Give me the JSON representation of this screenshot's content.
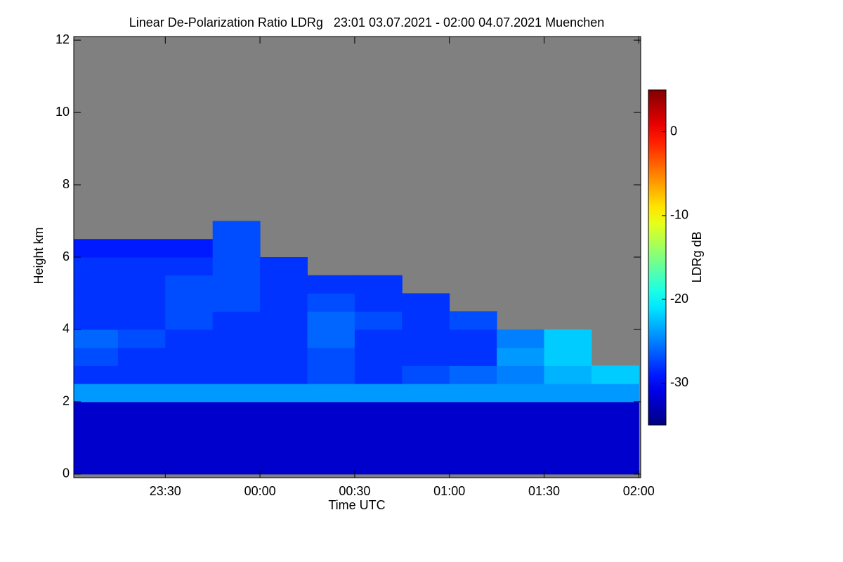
{
  "chart_data": {
    "type": "heatmap",
    "title": "Linear De-Polarization Ratio LDRg   23:01 03.07.2021 - 02:00 04.07.2021 Muenchen",
    "xlabel": "Time UTC",
    "ylabel": "Height km",
    "colorbar_label": "LDRg dB",
    "x_edges": [
      23.0167,
      23.25,
      23.5,
      23.75,
      24,
      24.25,
      24.5,
      24.75,
      25,
      25.25,
      25.5,
      25.75,
      26
    ],
    "y_edges": [
      0,
      0.5,
      1,
      1.5,
      2,
      2.5,
      3,
      3.5,
      4,
      4.5,
      5,
      5.5,
      6,
      6.5,
      7
    ],
    "z": [
      [
        -32,
        -32,
        -32,
        -32,
        -32,
        -32,
        -32,
        -32,
        -32,
        -32,
        -32,
        -32
      ],
      [
        -32,
        -32,
        -32,
        -32,
        -32,
        -32,
        -32,
        -32,
        -32,
        -32,
        -32,
        -32
      ],
      [
        -32,
        -32,
        -32,
        -32,
        -32,
        -32,
        -32,
        -32,
        -32,
        -32,
        -32,
        -32
      ],
      [
        -32,
        -32,
        -32,
        -32,
        -32,
        -32,
        -32,
        -32,
        -32,
        -32,
        -32,
        -32
      ],
      [
        -24,
        -24,
        -24,
        -24,
        -24,
        -24,
        -24,
        -24,
        -24,
        -24,
        -24,
        -24
      ],
      [
        -28,
        -28,
        -28,
        -28,
        -28,
        -27,
        -28,
        -27,
        -26,
        -25,
        -23,
        -22
      ],
      [
        -27,
        -28,
        -28,
        -28,
        -28,
        -27,
        -28,
        -28,
        -28,
        -24,
        -22,
        null
      ],
      [
        -26,
        -27,
        -28,
        -28,
        -28,
        -26,
        -28,
        -28,
        -28,
        -25,
        -22,
        null
      ],
      [
        -28,
        -28,
        -27,
        -28,
        -28,
        -26,
        -27,
        -28,
        -27,
        null,
        null,
        null
      ],
      [
        -28,
        -28,
        -27,
        -27,
        -28,
        -27,
        -28,
        -28,
        null,
        null,
        null,
        null
      ],
      [
        -28,
        -28,
        -27,
        -27,
        -28,
        -28,
        -28,
        null,
        null,
        null,
        null,
        null
      ],
      [
        -28,
        -28,
        -28,
        -27,
        -28,
        null,
        null,
        null,
        null,
        null,
        null,
        null
      ],
      [
        -29,
        -29,
        -29,
        -27,
        null,
        null,
        null,
        null,
        null,
        null,
        null,
        null
      ],
      [
        null,
        null,
        null,
        -27,
        null,
        null,
        null,
        null,
        null,
        null,
        null,
        null
      ]
    ],
    "xlim": [
      23.0167,
      26.01
    ],
    "xticks": [
      {
        "value": 23.5,
        "label": "23:30"
      },
      {
        "value": 24,
        "label": "00:00"
      },
      {
        "value": 24.5,
        "label": "00:30"
      },
      {
        "value": 25,
        "label": "01:00"
      },
      {
        "value": 25.5,
        "label": "01:30"
      },
      {
        "value": 26,
        "label": "02:00"
      }
    ],
    "ylim": [
      -0.1,
      12.1
    ],
    "yticks": [
      0,
      2,
      4,
      6,
      8,
      10,
      12
    ],
    "zlim": [
      -35,
      5
    ],
    "zticks": [
      0,
      -10,
      -20,
      -30
    ],
    "colormap": "jet",
    "nodata_color": "#808080"
  }
}
